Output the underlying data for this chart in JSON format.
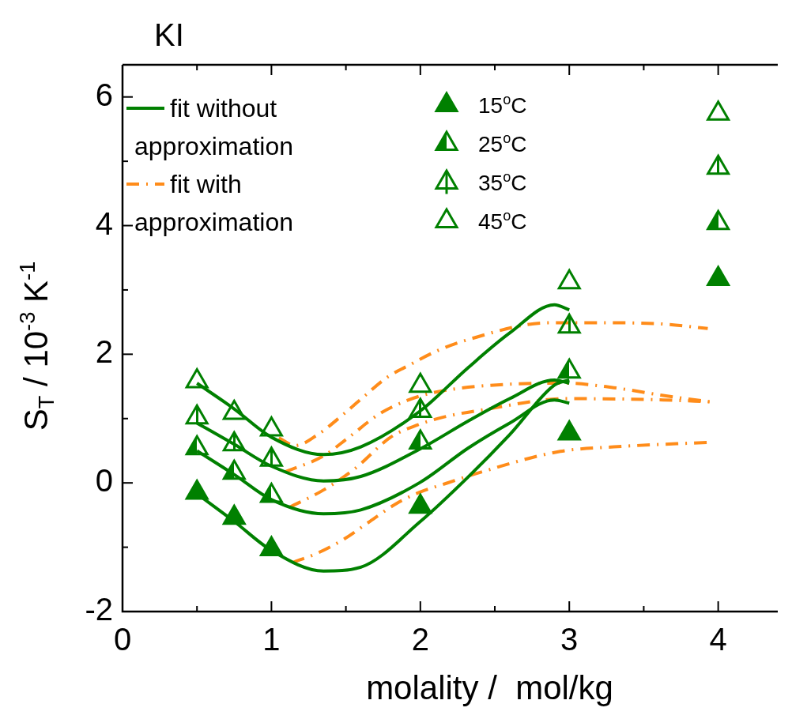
{
  "chart_data": {
    "type": "scatter",
    "title": "KI",
    "xlabel": "molality /  mol/kg",
    "ylabel": "S$_{T}$ / 10$^{-3}$ K$^{-1}$",
    "xlim": [
      0,
      4.4
    ],
    "xticks": [
      0,
      {
        "value": 0.5,
        "label": null
      },
      1,
      {
        "value": 1.5,
        "label": null
      },
      2,
      {
        "value": 2.5,
        "label": null
      },
      3,
      {
        "value": 3.5,
        "label": null
      },
      4
    ],
    "ylim": [
      -2,
      6.5
    ],
    "yticks": [
      -2,
      {
        "value": -1,
        "label": null
      },
      0,
      {
        "value": 1,
        "label": null
      },
      2,
      {
        "value": 3,
        "label": null
      },
      4,
      {
        "value": 5,
        "label": null
      },
      6
    ],
    "grid": false,
    "legend": "top left",
    "marker": "triangle",
    "series": [
      {
        "name": "15$^{o}$C",
        "color": "#008000",
        "x": [
          0.5,
          0.75,
          1,
          2,
          3,
          4
        ],
        "values": [
          -0.15,
          -0.54,
          -1.03,
          -0.37,
          0.77,
          3.17
        ]
      },
      {
        "name": "25$^{o}$C",
        "color": "#008000",
        "x": [
          0.5,
          0.75,
          1,
          2,
          3,
          4
        ],
        "values": [
          0.54,
          0.16,
          -0.2,
          0.63,
          1.73,
          4.04
        ]
      },
      {
        "name": "35$^{o}$C",
        "color": "#008000",
        "x": [
          0.5,
          0.75,
          1,
          2,
          3,
          4
        ],
        "values": [
          1.02,
          0.6,
          0.36,
          1.12,
          2.43,
          4.9
        ]
      },
      {
        "name": "45$^{o}$C",
        "color": "#008000",
        "x": [
          0.5,
          0.75,
          1,
          2,
          3,
          4
        ],
        "values": [
          1.58,
          1.09,
          0.83,
          1.51,
          3.12,
          5.74
        ]
      },
      {
        "type": "line",
        "name": "fit without approximation",
        "color": "#008000",
        "line_style": "solid",
        "marker": "none",
        "x": [
          0.5,
          0.75,
          1,
          1.35,
          1.6,
          2,
          2.32,
          2.6,
          2.9,
          3
        ],
        "values": [
          1.55,
          1.15,
          0.71,
          0.44,
          0.56,
          1.12,
          1.79,
          2.33,
          2.77,
          2.69
        ]
      },
      {
        "type": "line",
        "color": "#008000",
        "line_style": "solid",
        "marker": "none",
        "x": [
          0.5,
          0.75,
          1,
          1.35,
          1.6,
          2,
          2.32,
          2.6,
          2.9,
          3
        ],
        "values": [
          0.93,
          0.6,
          0.26,
          0.03,
          0.1,
          0.53,
          0.96,
          1.31,
          1.6,
          1.55
        ]
      },
      {
        "type": "line",
        "color": "#008000",
        "line_style": "solid",
        "marker": "none",
        "x": [
          0.5,
          0.75,
          1,
          1.35,
          1.6,
          2,
          2.32,
          2.6,
          2.9,
          3
        ],
        "values": [
          0.5,
          0.13,
          -0.26,
          -0.48,
          -0.42,
          0.01,
          0.54,
          0.93,
          1.29,
          1.24
        ]
      },
      {
        "type": "line",
        "color": "#008000",
        "line_style": "solid",
        "marker": "none",
        "x": [
          0.5,
          0.75,
          1,
          1.35,
          1.6,
          2,
          2.32,
          2.6,
          2.9,
          3
        ],
        "values": [
          -0.17,
          -0.6,
          -1.05,
          -1.37,
          -1.31,
          -0.6,
          0.09,
          0.75,
          1.52,
          1.6
        ]
      },
      {
        "type": "line",
        "name": "fit with approximation",
        "color": "#ff8c1a",
        "line_style": "dashed",
        "marker": "none",
        "x": [
          1.05,
          1.16,
          1.31,
          1.49,
          1.63,
          1.77,
          1.94,
          2.11,
          2.31,
          2.87,
          3.2,
          3.63,
          3.93
        ],
        "values": [
          0.7,
          0.58,
          0.75,
          1.08,
          1.36,
          1.63,
          1.85,
          2.05,
          2.22,
          2.49,
          2.49,
          2.47,
          2.4
        ]
      },
      {
        "type": "line",
        "color": "#ff8c1a",
        "line_style": "dashed",
        "marker": "none",
        "x": [
          1.09,
          1.35,
          1.52,
          1.73,
          1.91,
          2.08,
          2.43,
          2.98,
          3.3,
          3.63,
          3.95
        ],
        "values": [
          0.17,
          0.42,
          0.71,
          1.08,
          1.28,
          1.4,
          1.51,
          1.55,
          1.48,
          1.36,
          1.26
        ]
      },
      {
        "type": "line",
        "color": "#ff8c1a",
        "line_style": "dashed",
        "marker": "none",
        "x": [
          1.12,
          1.35,
          1.56,
          1.8,
          1.98,
          2.15,
          2.43,
          2.98,
          3.63,
          3.95
        ],
        "values": [
          -0.38,
          -0.11,
          0.22,
          0.71,
          0.9,
          1.02,
          1.14,
          1.31,
          1.29,
          1.26
        ]
      },
      {
        "type": "line",
        "color": "#ff8c1a",
        "line_style": "dashed",
        "marker": "none",
        "x": [
          1.14,
          1.31,
          1.49,
          1.66,
          1.84,
          1.99,
          2.17,
          2.41,
          2.94,
          3.3,
          3.93
        ],
        "values": [
          -1.24,
          -1.09,
          -0.87,
          -0.6,
          -0.32,
          -0.15,
          -0.01,
          0.17,
          0.49,
          0.56,
          0.63
        ]
      }
    ]
  }
}
